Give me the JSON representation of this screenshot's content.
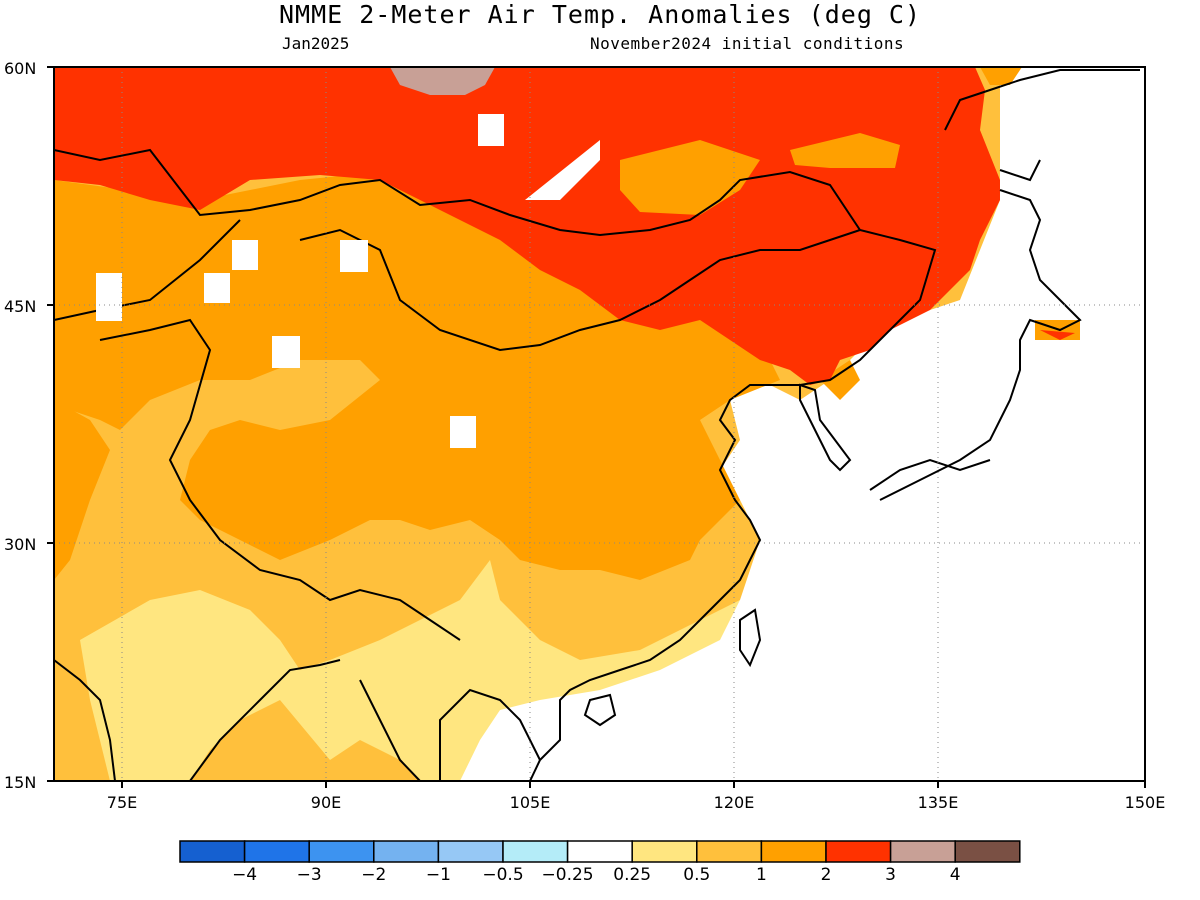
{
  "title": "NMME 2-Meter Air Temp. Anomalies (deg C)",
  "subtitle_left": "Jan2025",
  "subtitle_right": "November2024 initial conditions",
  "y_axis_labels": [
    "60N",
    "45N",
    "30N",
    "15N"
  ],
  "x_axis_labels": [
    "75E",
    "90E",
    "105E",
    "120E",
    "135E",
    "150E"
  ],
  "colorbar": {
    "labels": [
      "-4",
      "-3",
      "-2",
      "-1",
      "-0.5",
      "-0.25",
      "0.25",
      "0.5",
      "1",
      "2",
      "3",
      "4"
    ],
    "colors": [
      "#1560d0",
      "#1f74e8",
      "#3d93f0",
      "#74b2f0",
      "#96c8f5",
      "#b4ecf8",
      "#ffffff",
      "#ffe680",
      "#ffc03c",
      "#ffa000",
      "#ff3200",
      "#c8a096",
      "#7a5044"
    ]
  },
  "map_extent": {
    "lon_min": 70,
    "lon_max": 150,
    "lat_min": 15,
    "lat_max": 60,
    "grid_lon": [
      75,
      90,
      105,
      120,
      135
    ],
    "grid_lat": [
      45,
      30
    ]
  },
  "legend_levels": {
    "white": "near-normal (-0.25 to 0.25)",
    "light_yellow": "0.25 to 0.5",
    "light_orange": "0.5 to 1",
    "orange": "1 to 2",
    "red": "2 to 3",
    "tan": "3 to 4"
  }
}
